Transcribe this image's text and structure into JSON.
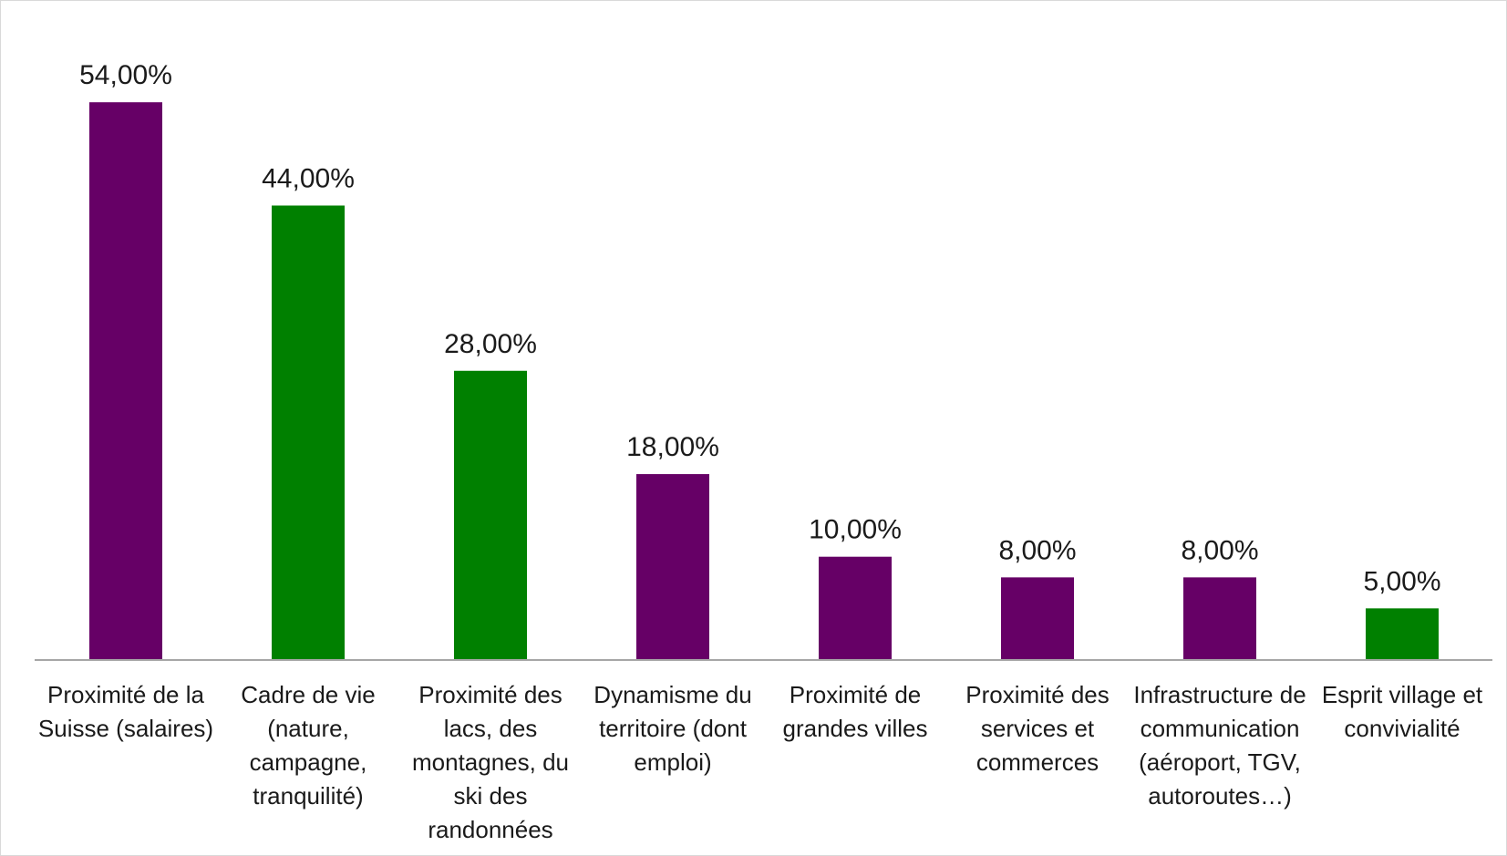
{
  "chart_data": {
    "type": "bar",
    "categories": [
      [
        "Proximité de la",
        "Suisse (salaires)"
      ],
      [
        "Cadre de vie",
        "(nature,",
        "campagne,",
        "tranquilité)"
      ],
      [
        "Proximité des",
        "lacs, des",
        "montagnes, du",
        "ski des",
        "randonnées"
      ],
      [
        "Dynamisme du",
        "territoire (dont",
        "emploi)"
      ],
      [
        "Proximité de",
        "grandes villes"
      ],
      [
        "Proximité des",
        "services et",
        "commerces"
      ],
      [
        "Infrastructure de",
        "communication",
        "(aéroport, TGV,",
        "autoroutes…)"
      ],
      [
        "Esprit village et",
        "convivialité"
      ]
    ],
    "values": [
      54,
      44,
      28,
      18,
      10,
      8,
      8,
      5
    ],
    "value_labels": [
      "54,00%",
      "44,00%",
      "28,00%",
      "18,00%",
      "10,00%",
      "8,00%",
      "8,00%",
      "5,00%"
    ],
    "bar_colors": [
      "#660066",
      "#008000",
      "#008000",
      "#660066",
      "#660066",
      "#660066",
      "#660066",
      "#008000"
    ],
    "ylim": [
      0,
      60
    ],
    "title": "",
    "xlabel": "",
    "ylabel": "",
    "grid": false,
    "legend": "none"
  },
  "colors": {
    "purple": "#660066",
    "green": "#008000",
    "axis": "#a6a6a6"
  }
}
